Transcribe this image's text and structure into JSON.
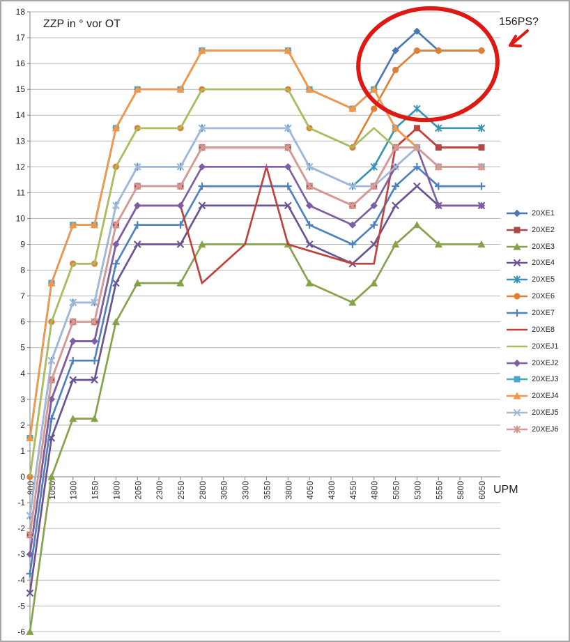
{
  "title": "ZZP in ° vor OT",
  "x_axis_label": "UPM",
  "annotation": {
    "text": "156PS?",
    "color": "#de1812"
  },
  "chart_data": {
    "type": "line",
    "title": "ZZP in ° vor OT",
    "xlabel": "UPM",
    "ylabel": "ZZP in ° vor OT",
    "categories": [
      "800",
      "1050",
      "1300",
      "1550",
      "1800",
      "2050",
      "2300",
      "2550",
      "2800",
      "3050",
      "3300",
      "3550",
      "3800",
      "4050",
      "4300",
      "4550",
      "4800",
      "5050",
      "5300",
      "5550",
      "5800",
      "6050"
    ],
    "ylim": [
      -6,
      18
    ],
    "y_ticks": [
      18,
      17,
      16,
      15,
      14,
      13,
      12,
      11,
      10,
      9,
      8,
      7,
      6,
      5,
      4,
      3,
      2,
      1,
      0,
      -1,
      -2,
      -3,
      -4,
      -5,
      -6
    ],
    "grid": true,
    "legend_position": "right",
    "series": [
      {
        "name": "20XE1",
        "color": "#4a76b2",
        "marker": "diamond",
        "values": [
          1.5,
          7.5,
          9.75,
          9.75,
          13.5,
          15,
          null,
          15,
          16.5,
          null,
          null,
          null,
          16.5,
          15,
          null,
          14.25,
          15,
          16.5,
          17.25,
          16.5,
          null,
          16.5
        ]
      },
      {
        "name": "20XE2",
        "color": "#ae4a46",
        "marker": "square",
        "values": [
          -2.25,
          3.75,
          6,
          6,
          9.75,
          11.25,
          null,
          11.25,
          12.75,
          null,
          null,
          null,
          12.75,
          11.25,
          null,
          10.5,
          11.25,
          12.75,
          13.5,
          12.75,
          null,
          12.75
        ]
      },
      {
        "name": "20XE3",
        "color": "#86a24a",
        "marker": "triangle",
        "values": [
          -6,
          0,
          2.25,
          2.25,
          6,
          7.5,
          null,
          7.5,
          9,
          null,
          null,
          null,
          9,
          7.5,
          null,
          6.75,
          7.5,
          9,
          9.75,
          9,
          null,
          9
        ]
      },
      {
        "name": "20XE4",
        "color": "#6a5391",
        "marker": "x",
        "values": [
          -4.5,
          1.5,
          3.75,
          3.75,
          7.5,
          9,
          null,
          9,
          10.5,
          null,
          null,
          null,
          10.5,
          9,
          null,
          8.25,
          9,
          10.5,
          11.25,
          10.5,
          null,
          10.5
        ]
      },
      {
        "name": "20XE5",
        "color": "#3a93b2",
        "marker": "star",
        "values": [
          -1.5,
          4.5,
          6.75,
          6.75,
          10.5,
          12,
          null,
          12,
          13.5,
          null,
          null,
          null,
          13.5,
          12,
          null,
          11.25,
          12,
          13.5,
          14.25,
          13.5,
          null,
          13.5
        ]
      },
      {
        "name": "20XE6",
        "color": "#dd8138",
        "marker": "circle",
        "values": [
          0,
          6,
          8.25,
          8.25,
          12,
          13.5,
          null,
          13.5,
          15,
          null,
          null,
          null,
          15,
          13.5,
          null,
          12.75,
          14.25,
          15.75,
          16.5,
          16.5,
          null,
          16.5
        ]
      },
      {
        "name": "20XE7",
        "color": "#4f81bd",
        "marker": "plus",
        "values": [
          -3.75,
          2.25,
          4.5,
          4.5,
          8.25,
          9.75,
          null,
          9.75,
          11.25,
          null,
          null,
          null,
          11.25,
          9.75,
          null,
          9,
          9.75,
          11.25,
          12,
          11.25,
          null,
          11.25
        ]
      },
      {
        "name": "20XE8",
        "color": "#c2413d",
        "marker": "none",
        "values": [
          -3,
          3,
          5.25,
          5.25,
          9,
          10.5,
          null,
          10.5,
          7.5,
          null,
          9,
          12,
          9,
          8.75,
          null,
          8.25,
          8.25,
          12.75,
          13.5,
          12.75,
          null,
          12.75
        ]
      },
      {
        "name": "20XEJ1",
        "color": "#a6c061",
        "marker": "none",
        "values": [
          0,
          6,
          8.25,
          8.25,
          12,
          13.5,
          null,
          13.5,
          15,
          null,
          null,
          null,
          15,
          13.5,
          null,
          12.75,
          13.5,
          12.75,
          12.75,
          12,
          null,
          12
        ]
      },
      {
        "name": "20XEJ2",
        "color": "#7c5fa2",
        "marker": "diamond",
        "values": [
          -3,
          3,
          5.25,
          5.25,
          9,
          10.5,
          null,
          10.5,
          12,
          null,
          null,
          null,
          12,
          10.5,
          null,
          9.75,
          10.5,
          12,
          12.75,
          10.5,
          null,
          10.5
        ]
      },
      {
        "name": "20XEJ3",
        "color": "#46a9c8",
        "marker": "square",
        "values": [
          1.5,
          7.5,
          9.75,
          9.75,
          13.5,
          15,
          null,
          15,
          16.5,
          null,
          null,
          null,
          16.5,
          15,
          null,
          14.25,
          15,
          13.5,
          12.75,
          12,
          null,
          12
        ]
      },
      {
        "name": "20XEJ4",
        "color": "#f79646",
        "marker": "triangle",
        "values": [
          1.5,
          7.5,
          9.75,
          9.75,
          13.5,
          15,
          null,
          15,
          16.5,
          null,
          null,
          null,
          16.5,
          15,
          null,
          14.25,
          15,
          13.5,
          12.75,
          12,
          null,
          12
        ]
      },
      {
        "name": "20XEJ5",
        "color": "#a2b8d8",
        "marker": "x",
        "values": [
          -1.5,
          4.5,
          6.75,
          6.75,
          10.5,
          12,
          null,
          12,
          13.5,
          null,
          null,
          null,
          13.5,
          12,
          null,
          11.25,
          11.25,
          12,
          12.75,
          12,
          null,
          12
        ]
      },
      {
        "name": "20XEJ6",
        "color": "#d59a96",
        "marker": "star",
        "values": [
          -2.25,
          3.75,
          6,
          6,
          9.75,
          11.25,
          null,
          11.25,
          12.75,
          null,
          null,
          null,
          12.75,
          11.25,
          null,
          10.5,
          11.25,
          12.75,
          12.75,
          12,
          null,
          12
        ]
      }
    ]
  }
}
